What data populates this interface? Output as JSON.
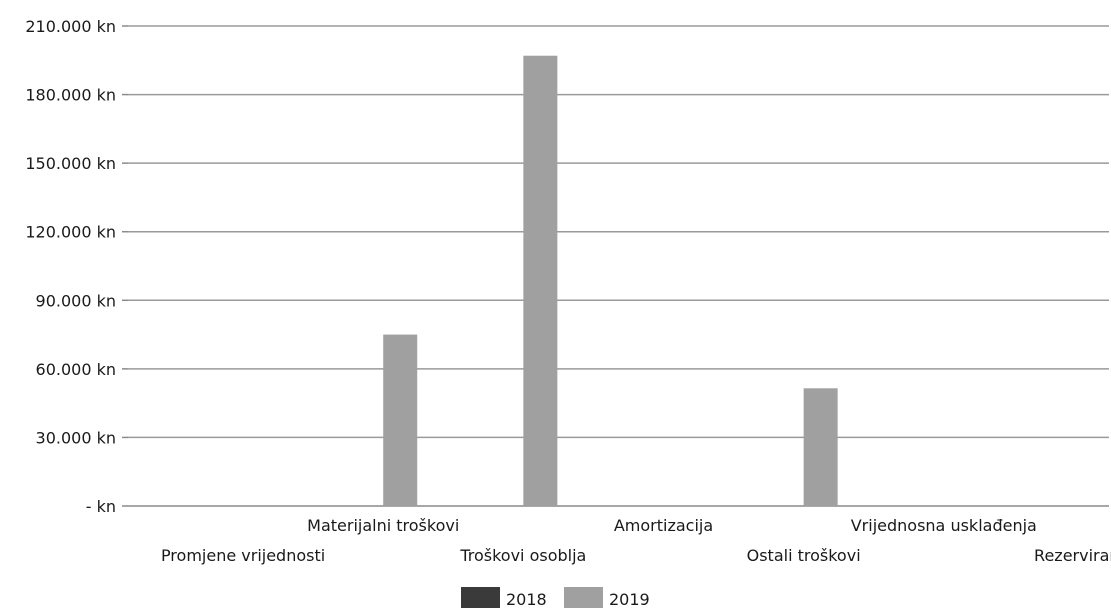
{
  "chart_data": {
    "type": "bar",
    "categories": [
      "Promjene vrijednosti",
      "Materijalni troškovi",
      "Troškovi osoblja",
      "Amortizacija",
      "Ostali troškovi",
      "Vrijednosna usklađenja",
      "Rezerviranja"
    ],
    "series": [
      {
        "name": "2018",
        "values": [
          0,
          0,
          0,
          0,
          0,
          0,
          0
        ],
        "color": "#3a3a3a"
      },
      {
        "name": "2019",
        "values": [
          0,
          75000,
          197000,
          0,
          51500,
          0,
          0
        ],
        "color": "#a0a0a0"
      }
    ],
    "ylim": [
      0,
      210000
    ],
    "yticks": [
      0,
      30000,
      60000,
      90000,
      120000,
      150000,
      180000,
      210000
    ],
    "ytick_labels": [
      "- kn",
      "30.000 kn",
      "60.000 kn",
      "90.000 kn",
      "120.000 kn",
      "150.000 kn",
      "180.000 kn",
      "210.000 kn"
    ],
    "grid": true,
    "legend_position": "bottom",
    "title": "",
    "xlabel": "",
    "ylabel": ""
  },
  "legend": {
    "items": [
      "2018",
      "2019"
    ]
  }
}
